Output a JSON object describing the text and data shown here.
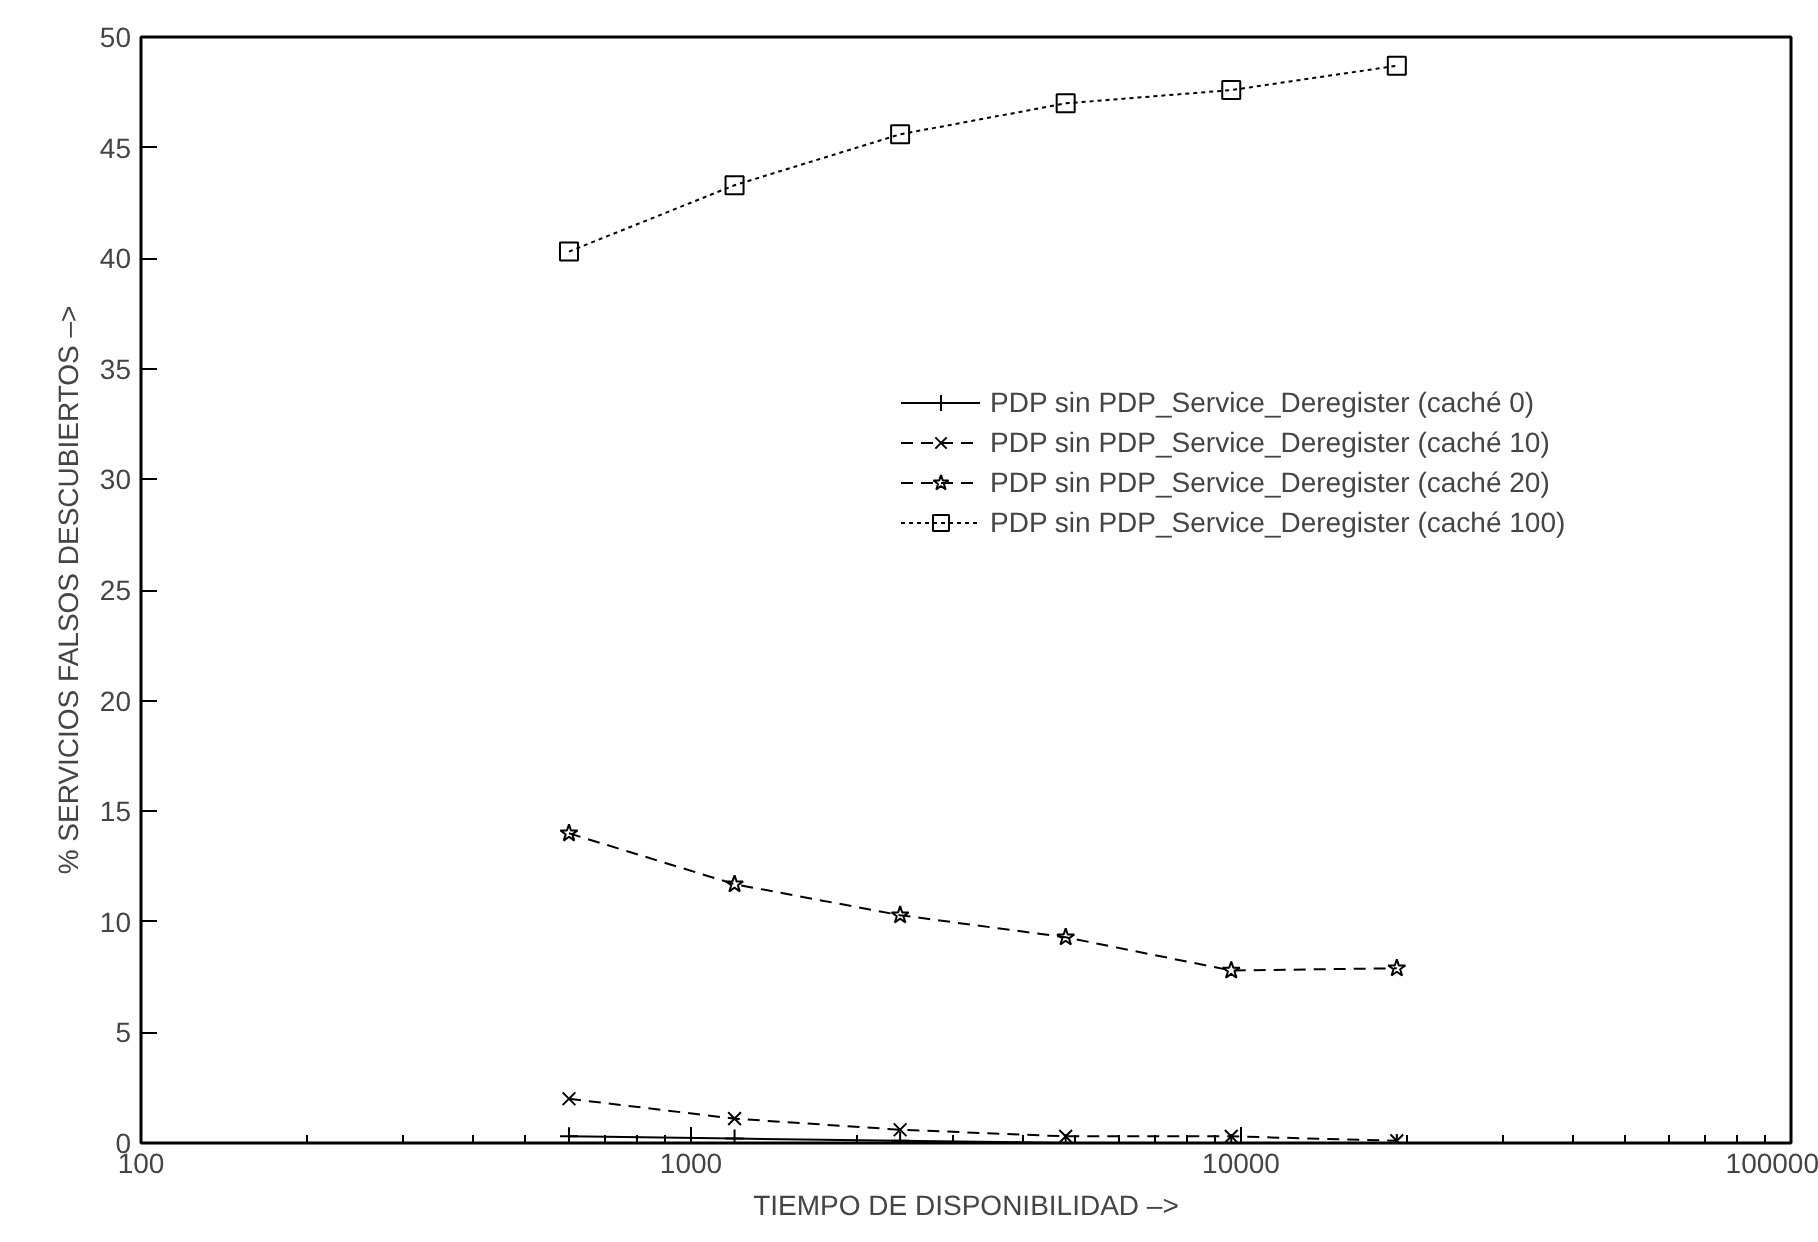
{
  "chart_data": {
    "type": "line",
    "xlabel": "TIEMPO DE DISPONIBILIDAD –>",
    "ylabel": "% SERVICIOS FALSOS DESCUBIERTOS –>",
    "x": [
      600,
      1200,
      2400,
      4800,
      9600,
      19200
    ],
    "series": [
      {
        "name": "PDP sin PDP_Service_Deregister (caché 0)",
        "color": "#000000",
        "marker": "cross",
        "line_style": "solid",
        "values": [
          0.3,
          0.2,
          0.1,
          0.0,
          0.0,
          0.0
        ]
      },
      {
        "name": "PDP sin PDP_Service_Deregister (caché 10)",
        "color": "#000000",
        "marker": "x",
        "line_style": "dashed",
        "values": [
          2.0,
          1.1,
          0.6,
          0.3,
          0.3,
          0.1
        ]
      },
      {
        "name": "PDP sin PDP_Service_Deregister (caché 20)",
        "color": "#000000",
        "marker": "star",
        "line_style": "dashed",
        "values": [
          14.0,
          11.7,
          10.3,
          9.3,
          7.8,
          7.9
        ]
      },
      {
        "name": "PDP sin PDP_Service_Deregister (caché 100)",
        "color": "#000000",
        "marker": "square",
        "line_style": "dotted",
        "values": [
          40.3,
          43.3,
          45.6,
          47.0,
          47.6,
          48.7
        ]
      }
    ],
    "log": "x",
    "xlim": [
      100,
      100000
    ],
    "xticks": [
      100,
      1000,
      10000,
      100000
    ],
    "ylim": [
      0,
      50
    ],
    "yticks": [
      0,
      5,
      10,
      15,
      20,
      25,
      30,
      35,
      40,
      45,
      50
    ],
    "grid": false,
    "legend": "right"
  }
}
